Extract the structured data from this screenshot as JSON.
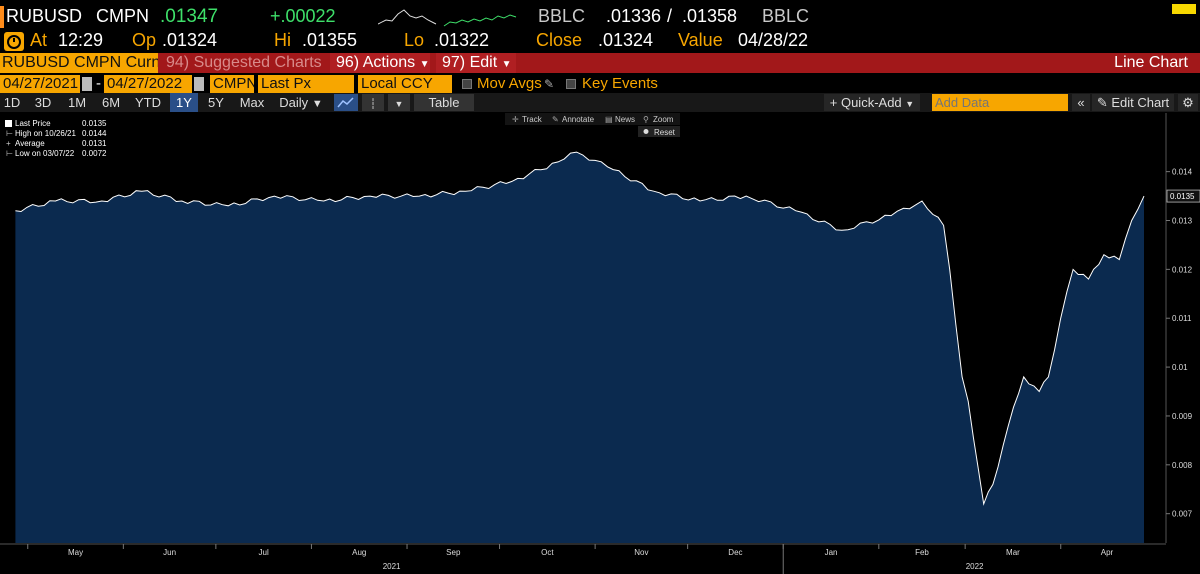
{
  "ticker": {
    "symbol": "RUBUSD",
    "source": "CMPN",
    "last": ".01347",
    "change": "+.00022",
    "bid_src": "BBLC",
    "bid": ".01336",
    "sep": "/",
    "ask": ".01358",
    "ask_src": "BBLC",
    "at_label": "At",
    "time": "12:29",
    "op_label": "Op",
    "op": ".01324",
    "hi_label": "Hi",
    "hi": ".01355",
    "lo_label": "Lo",
    "lo": ".01322",
    "close_label": "Close",
    "close": ".01324",
    "value_label": "Value",
    "value_date": "04/28/22"
  },
  "menu": {
    "security": "RUBUSD CMPN Curnc",
    "suggested": "94) Suggested Charts",
    "actions": "96) Actions",
    "edit": "97) Edit",
    "chart_type": "Line Chart"
  },
  "controls": {
    "start_date": "04/27/2021",
    "dash": "-",
    "end_date": "04/27/2022",
    "source": "CMPN",
    "field": "Last Px",
    "currency": "Local CCY",
    "mov_avgs": "Mov Avgs",
    "key_events": "Key Events"
  },
  "toolbar": {
    "ranges": [
      "1D",
      "3D",
      "1M",
      "6M",
      "YTD",
      "1Y",
      "5Y",
      "Max"
    ],
    "selected_range": "1Y",
    "frequency": "Daily",
    "table": "Table",
    "quick_add": "+ Quick-Add",
    "add_data_placeholder": "Add Data",
    "edit_chart": "Edit Chart"
  },
  "chart_tools": {
    "track": "Track",
    "annotate": "Annotate",
    "news": "News",
    "zoom": "Zoom",
    "reset": "Reset"
  },
  "legend": {
    "last_label": "Last Price",
    "last_value": "0.0135",
    "high_label": "High on 10/26/21",
    "high_value": "0.0144",
    "avg_label": "Average",
    "avg_value": "0.0131",
    "low_label": "Low on 03/07/22",
    "low_value": "0.0072"
  },
  "chart_data": {
    "type": "area",
    "title": "",
    "series": [
      {
        "name": "Last Price",
        "x": [
          "2021-04-27",
          "2021-05-10",
          "2021-05-25",
          "2021-06-07",
          "2021-06-20",
          "2021-07-05",
          "2021-07-20",
          "2021-08-05",
          "2021-08-20",
          "2021-09-05",
          "2021-09-20",
          "2021-10-05",
          "2021-10-20",
          "2021-10-26",
          "2021-11-05",
          "2021-11-20",
          "2021-12-05",
          "2021-12-20",
          "2022-01-05",
          "2022-01-20",
          "2022-02-05",
          "2022-02-15",
          "2022-02-22",
          "2022-02-24",
          "2022-02-28",
          "2022-03-02",
          "2022-03-07",
          "2022-03-10",
          "2022-03-15",
          "2022-03-20",
          "2022-03-25",
          "2022-03-28",
          "2022-04-01",
          "2022-04-05",
          "2022-04-10",
          "2022-04-15",
          "2022-04-20",
          "2022-04-24",
          "2022-04-28"
        ],
        "y": [
          0.0132,
          0.0134,
          0.0134,
          0.0136,
          0.0134,
          0.0133,
          0.0135,
          0.0134,
          0.0135,
          0.0135,
          0.0136,
          0.0138,
          0.0142,
          0.0144,
          0.0141,
          0.0136,
          0.0134,
          0.0135,
          0.0132,
          0.0128,
          0.0131,
          0.0134,
          0.0129,
          0.012,
          0.0098,
          0.0093,
          0.0072,
          0.0076,
          0.0088,
          0.0098,
          0.0095,
          0.0098,
          0.011,
          0.012,
          0.0118,
          0.0123,
          0.0122,
          0.013,
          0.0135
        ]
      }
    ],
    "x_tick_labels": [
      "May",
      "Jun",
      "Jul",
      "Aug",
      "Sep",
      "Oct",
      "Nov",
      "Dec",
      "Jan",
      "Feb",
      "Mar",
      "Apr"
    ],
    "year_labels": [
      "2021",
      "2022"
    ],
    "y_tick_labels": [
      "0.007",
      "0.008",
      "0.009",
      "0.01",
      "0.011",
      "0.012",
      "0.013",
      "0.014"
    ],
    "ylim": [
      0.0064,
      0.0152
    ],
    "last_marker": "0.0135",
    "xlabel": "",
    "ylabel": "",
    "grid": false,
    "legend_position": "top-left",
    "colors": {
      "fill": "#0b2a4f",
      "line": "#ffffff",
      "background": "#000000"
    }
  }
}
